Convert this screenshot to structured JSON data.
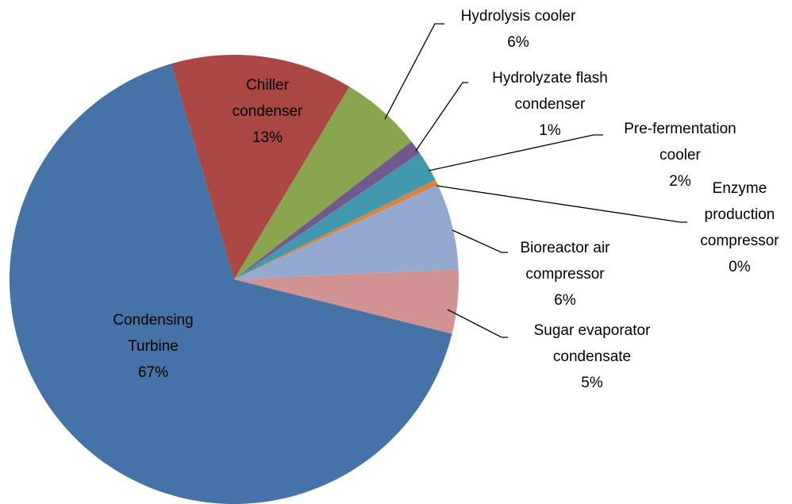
{
  "chart_data": {
    "type": "pie",
    "categories": [
      "Condensing Turbine",
      "Chiller condenser",
      "Hydrolysis cooler",
      "Hydrolyzate flash condenser",
      "Pre-fermentation cooler",
      "Enzyme production compressor",
      "Bioreactor air compressor",
      "Sugar evaporator condensate"
    ],
    "values": [
      66.6,
      13.1,
      5.9,
      1.0,
      2.2,
      0.4,
      6.2,
      4.6
    ],
    "value_labels": [
      "67%",
      "13%",
      "6%",
      "1%",
      "2%",
      "0%",
      "6%",
      "5%"
    ],
    "colors": [
      "#4572a7",
      "#aa4643",
      "#89a54e",
      "#71588f",
      "#4198af",
      "#db843d",
      "#93a9cf",
      "#d19392"
    ]
  }
}
